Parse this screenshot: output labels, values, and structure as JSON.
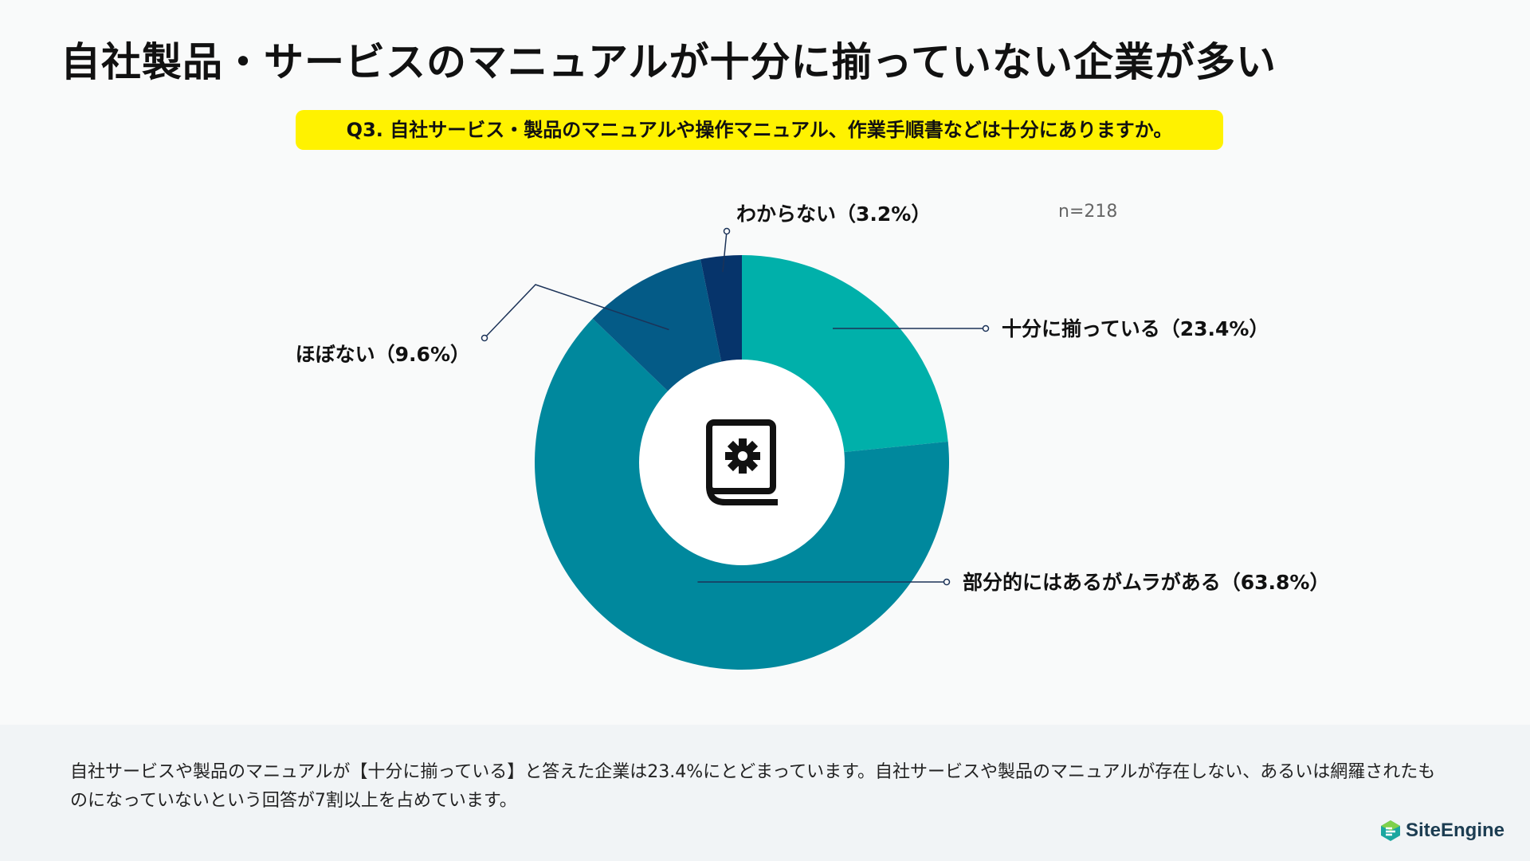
{
  "title": "自社製品・サービスのマニュアルが十分に揃っていない企業が多い",
  "question": "Q3. 自社サービス・製品のマニュアルや操作マニュアル、作業手順書などは十分にありますか。",
  "sample_size": "n=218",
  "center_icon": "manual-book-gear-icon",
  "chart_data": {
    "type": "pie",
    "categories": [
      "十分に揃っている",
      "部分的にはあるがムラがある",
      "ほぼない",
      "わからない"
    ],
    "values": [
      23.4,
      63.8,
      9.6,
      3.2
    ],
    "labels": [
      "十分に揃っている（23.4%）",
      "部分的にはあるがムラがある（63.8%）",
      "ほぼない（9.6%）",
      "わからない（3.2%）"
    ],
    "colors": [
      "#00b0aa",
      "#00889d",
      "#045b87",
      "#06346b"
    ],
    "units": "%",
    "donut": true
  },
  "footer": {
    "text": "自社サービスや製品のマニュアルが【十分に揃っている】と答えた企業は23.4%にとどまっています。自社サービスや製品のマニュアルが存在しない、あるいは網羅されたものになっていないという回答が7割以上を占めています。",
    "logo_text": "SiteEngine",
    "logo_icon": "siteengine-logo-icon"
  }
}
